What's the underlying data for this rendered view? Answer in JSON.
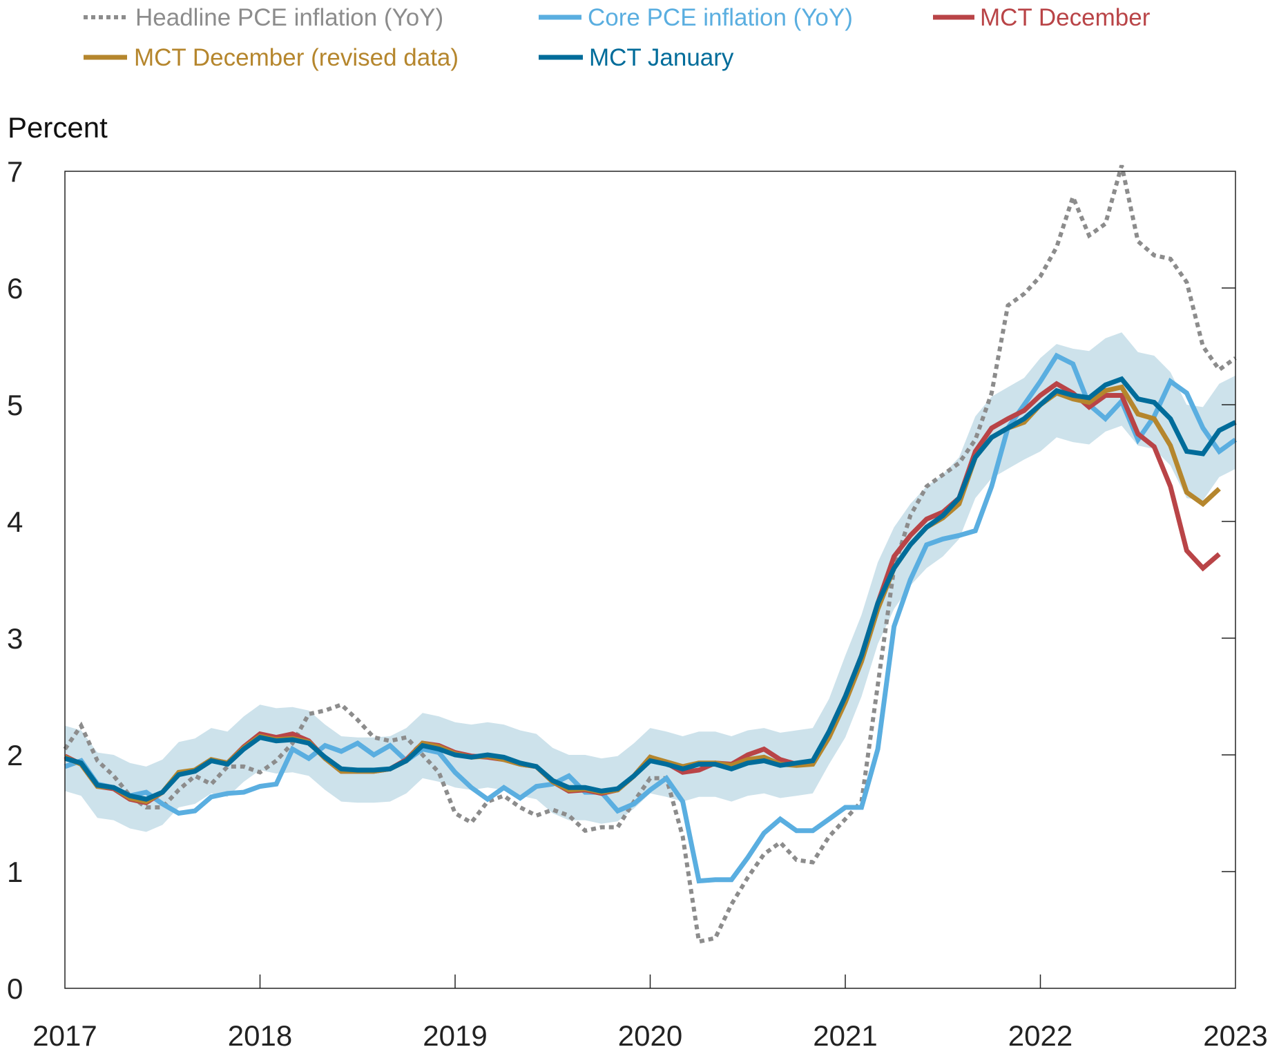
{
  "chart_data": {
    "type": "line",
    "title": "",
    "ylabel": "Percent",
    "xlabel": "",
    "ylim": [
      0,
      7
    ],
    "xlim": [
      "2017-01",
      "2023-01"
    ],
    "yticks": [
      "0",
      "1",
      "2",
      "3",
      "4",
      "5",
      "6",
      "7"
    ],
    "xticks": [
      "2017",
      "2018",
      "2019",
      "2020",
      "2021",
      "2022",
      "2023"
    ],
    "grid": false,
    "legend_position": "top",
    "x_start": "2017-01",
    "x_frequency": "monthly",
    "series": [
      {
        "name": "Headline PCE inflation (YoY)",
        "color": "#8c8c8c",
        "style": "dotted",
        "values": [
          2.05,
          2.25,
          1.95,
          1.82,
          1.65,
          1.55,
          1.55,
          1.7,
          1.82,
          1.75,
          1.9,
          1.9,
          1.85,
          1.95,
          2.1,
          2.35,
          2.38,
          2.43,
          2.3,
          2.15,
          2.12,
          2.15,
          2.0,
          1.85,
          1.5,
          1.42,
          1.6,
          1.65,
          1.55,
          1.48,
          1.53,
          1.48,
          1.35,
          1.38,
          1.38,
          1.6,
          1.8,
          1.8,
          1.3,
          0.4,
          0.43,
          0.72,
          0.95,
          1.15,
          1.25,
          1.1,
          1.08,
          1.3,
          1.45,
          1.6,
          2.6,
          3.6,
          4.05,
          4.3,
          4.4,
          4.5,
          4.7,
          5.1,
          5.85,
          5.95,
          6.1,
          6.35,
          6.78,
          6.45,
          6.55,
          7.05,
          6.4,
          6.28,
          6.25,
          6.05,
          5.5,
          5.3,
          5.4
        ]
      },
      {
        "name": "Core PCE inflation (YoY)",
        "color": "#5aaee0",
        "style": "solid",
        "values": [
          1.9,
          1.95,
          1.75,
          1.72,
          1.65,
          1.68,
          1.58,
          1.5,
          1.52,
          1.64,
          1.67,
          1.68,
          1.73,
          1.75,
          2.05,
          1.97,
          2.08,
          2.03,
          2.1,
          2.0,
          2.08,
          1.95,
          2.05,
          2.02,
          1.85,
          1.72,
          1.62,
          1.72,
          1.63,
          1.73,
          1.75,
          1.82,
          1.68,
          1.68,
          1.52,
          1.58,
          1.7,
          1.8,
          1.6,
          0.92,
          0.93,
          0.93,
          1.12,
          1.33,
          1.45,
          1.35,
          1.35,
          1.45,
          1.55,
          1.55,
          2.05,
          3.1,
          3.5,
          3.8,
          3.85,
          3.88,
          3.92,
          4.3,
          4.8,
          5.0,
          5.2,
          5.42,
          5.35,
          5.0,
          4.88,
          5.03,
          4.7,
          4.9,
          5.2,
          5.1,
          4.8,
          4.6,
          4.7
        ]
      },
      {
        "name": "MCT December",
        "color": "#b94447",
        "style": "solid",
        "values": [
          1.99,
          1.92,
          1.73,
          1.71,
          1.62,
          1.59,
          1.68,
          1.84,
          1.87,
          1.96,
          1.93,
          2.07,
          2.18,
          2.15,
          2.18,
          2.12,
          1.97,
          1.86,
          1.86,
          1.86,
          1.88,
          1.96,
          2.1,
          2.08,
          2.02,
          1.99,
          1.98,
          1.96,
          1.92,
          1.9,
          1.77,
          1.69,
          1.7,
          1.67,
          1.7,
          1.82,
          1.98,
          1.93,
          1.85,
          1.87,
          1.93,
          1.92,
          2.0,
          2.05,
          1.96,
          1.92,
          1.94,
          2.2,
          2.5,
          2.85,
          3.3,
          3.7,
          3.88,
          4.02,
          4.08,
          4.2,
          4.6,
          4.8,
          4.88,
          4.95,
          5.08,
          5.18,
          5.1,
          4.98,
          5.08,
          5.08,
          4.75,
          4.64,
          4.3,
          3.75,
          3.6,
          3.72
        ]
      },
      {
        "name": "MCT December (revised data)",
        "color": "#b5862d",
        "style": "solid",
        "values": [
          1.98,
          1.92,
          1.73,
          1.72,
          1.63,
          1.6,
          1.68,
          1.85,
          1.87,
          1.96,
          1.93,
          2.06,
          2.16,
          2.13,
          2.14,
          2.11,
          1.97,
          1.86,
          1.86,
          1.86,
          1.88,
          1.95,
          2.1,
          2.07,
          2.01,
          1.98,
          1.99,
          1.96,
          1.92,
          1.9,
          1.77,
          1.7,
          1.71,
          1.68,
          1.7,
          1.82,
          1.98,
          1.94,
          1.9,
          1.93,
          1.93,
          1.91,
          1.96,
          1.98,
          1.92,
          1.91,
          1.92,
          2.15,
          2.45,
          2.8,
          3.25,
          3.6,
          3.8,
          3.95,
          4.03,
          4.15,
          4.55,
          4.72,
          4.8,
          4.85,
          5.0,
          5.1,
          5.05,
          5.02,
          5.12,
          5.15,
          4.92,
          4.88,
          4.65,
          4.25,
          4.15,
          4.28
        ]
      },
      {
        "name": "MCT January",
        "color": "#006c9a",
        "style": "solid",
        "values": [
          1.97,
          1.93,
          1.74,
          1.72,
          1.65,
          1.62,
          1.68,
          1.83,
          1.86,
          1.95,
          1.92,
          2.05,
          2.15,
          2.12,
          2.13,
          2.1,
          1.98,
          1.88,
          1.87,
          1.87,
          1.88,
          1.95,
          2.08,
          2.05,
          2.0,
          1.98,
          2.0,
          1.98,
          1.93,
          1.9,
          1.78,
          1.72,
          1.72,
          1.69,
          1.71,
          1.82,
          1.95,
          1.92,
          1.88,
          1.92,
          1.92,
          1.88,
          1.93,
          1.95,
          1.91,
          1.93,
          1.95,
          2.2,
          2.5,
          2.85,
          3.3,
          3.6,
          3.8,
          3.95,
          4.05,
          4.2,
          4.55,
          4.72,
          4.8,
          4.88,
          5.0,
          5.12,
          5.08,
          5.06,
          5.17,
          5.22,
          5.05,
          5.02,
          4.88,
          4.6,
          4.58,
          4.78,
          4.85
        ]
      }
    ],
    "band": {
      "color": "#cde2eb",
      "upper": [
        2.25,
        2.21,
        2.02,
        2.0,
        1.93,
        1.9,
        1.96,
        2.11,
        2.14,
        2.23,
        2.2,
        2.33,
        2.43,
        2.4,
        2.41,
        2.38,
        2.26,
        2.16,
        2.15,
        2.15,
        2.16,
        2.23,
        2.36,
        2.33,
        2.28,
        2.26,
        2.28,
        2.26,
        2.21,
        2.18,
        2.06,
        2.0,
        2.0,
        1.97,
        1.99,
        2.1,
        2.23,
        2.2,
        2.16,
        2.2,
        2.2,
        2.16,
        2.21,
        2.23,
        2.19,
        2.21,
        2.23,
        2.48,
        2.85,
        3.2,
        3.65,
        3.95,
        4.15,
        4.3,
        4.4,
        4.55,
        4.9,
        5.07,
        5.15,
        5.23,
        5.4,
        5.52,
        5.48,
        5.46,
        5.57,
        5.62,
        5.45,
        5.42,
        5.28,
        5.0,
        4.98,
        5.18,
        5.25
      ],
      "lower": [
        1.69,
        1.65,
        1.46,
        1.44,
        1.37,
        1.34,
        1.4,
        1.55,
        1.58,
        1.67,
        1.64,
        1.77,
        1.87,
        1.84,
        1.85,
        1.82,
        1.7,
        1.6,
        1.59,
        1.59,
        1.6,
        1.67,
        1.8,
        1.77,
        1.72,
        1.7,
        1.72,
        1.7,
        1.65,
        1.62,
        1.5,
        1.44,
        1.44,
        1.41,
        1.43,
        1.54,
        1.67,
        1.64,
        1.6,
        1.64,
        1.64,
        1.6,
        1.65,
        1.67,
        1.63,
        1.65,
        1.67,
        1.92,
        2.15,
        2.5,
        2.95,
        3.25,
        3.45,
        3.6,
        3.7,
        3.85,
        4.2,
        4.37,
        4.45,
        4.53,
        4.6,
        4.72,
        4.68,
        4.66,
        4.77,
        4.82,
        4.65,
        4.62,
        4.48,
        4.2,
        4.18,
        4.38,
        4.45
      ]
    }
  }
}
